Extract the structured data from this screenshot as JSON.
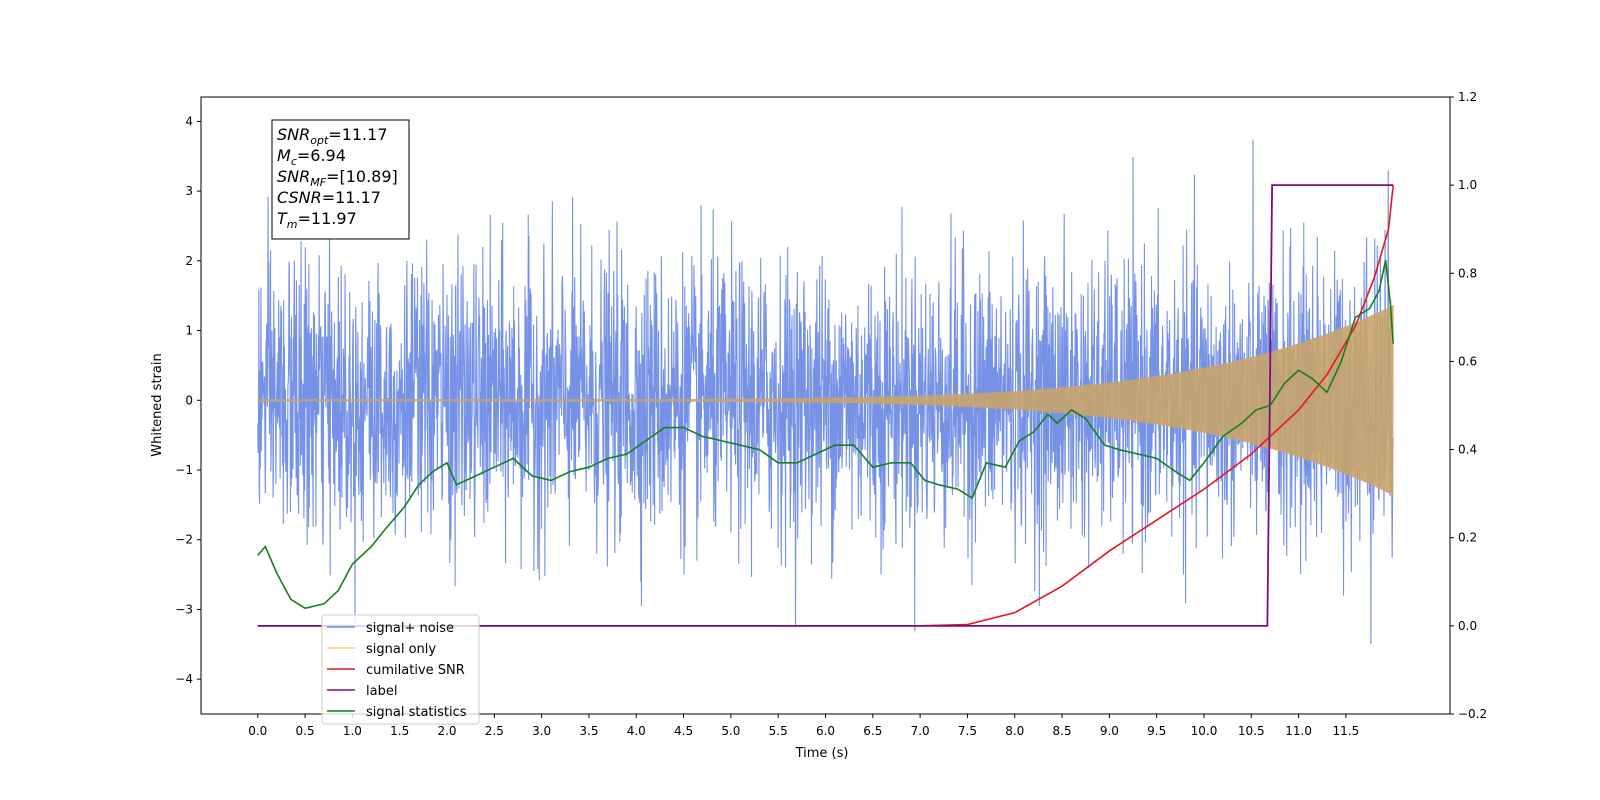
{
  "chart_data": {
    "type": "line",
    "xlabel": "Time (s)",
    "ylabel": "Whitened strain",
    "xlim": [
      -0.6,
      12.6
    ],
    "ylim": [
      -4.5,
      4.35
    ],
    "y2lim": [
      -0.2,
      1.2
    ],
    "x_ticks": [
      0.0,
      0.5,
      1.0,
      1.5,
      2.0,
      2.5,
      3.0,
      3.5,
      4.0,
      4.5,
      5.0,
      5.5,
      6.0,
      6.5,
      7.0,
      7.5,
      8.0,
      8.5,
      9.0,
      9.5,
      10.0,
      10.5,
      11.0,
      11.5
    ],
    "x_tick_labels": [
      "0.0",
      "0.5",
      "1.0",
      "1.5",
      "2.0",
      "2.5",
      "3.0",
      "3.5",
      "4.0",
      "4.5",
      "5.0",
      "5.5",
      "6.0",
      "6.5",
      "7.0",
      "7.5",
      "8.0",
      "8.5",
      "9.0",
      "9.5",
      "10.0",
      "10.5",
      "11.0",
      "11.5"
    ],
    "y_ticks": [
      -4,
      -3,
      -2,
      -1,
      0,
      1,
      2,
      3,
      4
    ],
    "y_tick_labels": [
      "−4",
      "−3",
      "−2",
      "−1",
      "0",
      "1",
      "2",
      "3",
      "4"
    ],
    "y2_ticks": [
      -0.2,
      0.0,
      0.2,
      0.4,
      0.6,
      0.8,
      1.0,
      1.2
    ],
    "y2_tick_labels": [
      "−0.2",
      "0.0",
      "0.2",
      "0.4",
      "0.6",
      "0.8",
      "1.0",
      "1.2"
    ],
    "legend_placement": "lower-left",
    "annotation_box": {
      "lines": [
        {
          "sym": "SNR",
          "sub": "opt",
          "val": "=11.17"
        },
        {
          "sym": "M",
          "sub": "c",
          "val": "=6.94"
        },
        {
          "sym": "SNR",
          "sub": "MF",
          "val": "=[10.89]"
        },
        {
          "sym": "CSNR",
          "sub": "",
          "val": "=11.17"
        },
        {
          "sym": "T",
          "sub": "m",
          "val": "=11.97"
        }
      ]
    },
    "series": [
      {
        "name": "signal+ noise",
        "axis": "left",
        "color": "#6f8ce6",
        "style": "noise",
        "x_range": [
          0.0,
          12.0
        ],
        "y_range": [
          -4.1,
          3.95
        ],
        "typical_band": [
          -1.5,
          1.5
        ]
      },
      {
        "name": "signal only",
        "axis": "left",
        "color": "#f5a623",
        "style": "chirp",
        "x_range": [
          0.0,
          12.0
        ],
        "peak_amplitude": 1.35
      },
      {
        "name": "cumilative SNR",
        "axis": "right",
        "color": "#e31a1c",
        "style": "line",
        "points": [
          [
            0.0,
            0.0
          ],
          [
            7.0,
            0.0
          ],
          [
            7.5,
            0.003
          ],
          [
            8.0,
            0.03
          ],
          [
            8.5,
            0.09
          ],
          [
            9.0,
            0.17
          ],
          [
            9.5,
            0.24
          ],
          [
            10.0,
            0.31
          ],
          [
            10.5,
            0.39
          ],
          [
            11.0,
            0.49
          ],
          [
            11.3,
            0.57
          ],
          [
            11.6,
            0.68
          ],
          [
            11.8,
            0.79
          ],
          [
            11.95,
            0.9
          ],
          [
            12.0,
            1.0
          ]
        ]
      },
      {
        "name": "label",
        "axis": "right",
        "color": "#7b0f7b",
        "style": "line",
        "points": [
          [
            0.0,
            0.0
          ],
          [
            10.67,
            0.0
          ],
          [
            10.72,
            1.0
          ],
          [
            12.0,
            1.0
          ]
        ]
      },
      {
        "name": "signal statistics",
        "axis": "right",
        "color": "#17801c",
        "style": "line",
        "points": [
          [
            0.0,
            0.16
          ],
          [
            0.08,
            0.18
          ],
          [
            0.2,
            0.12
          ],
          [
            0.35,
            0.06
          ],
          [
            0.5,
            0.04
          ],
          [
            0.7,
            0.05
          ],
          [
            0.85,
            0.08
          ],
          [
            1.0,
            0.14
          ],
          [
            1.2,
            0.18
          ],
          [
            1.35,
            0.22
          ],
          [
            1.55,
            0.27
          ],
          [
            1.7,
            0.32
          ],
          [
            1.85,
            0.35
          ],
          [
            2.0,
            0.37
          ],
          [
            2.1,
            0.32
          ],
          [
            2.3,
            0.34
          ],
          [
            2.5,
            0.36
          ],
          [
            2.7,
            0.38
          ],
          [
            2.9,
            0.34
          ],
          [
            3.1,
            0.33
          ],
          [
            3.3,
            0.35
          ],
          [
            3.5,
            0.36
          ],
          [
            3.7,
            0.38
          ],
          [
            3.9,
            0.39
          ],
          [
            4.1,
            0.42
          ],
          [
            4.3,
            0.45
          ],
          [
            4.5,
            0.45
          ],
          [
            4.7,
            0.43
          ],
          [
            4.9,
            0.42
          ],
          [
            5.1,
            0.41
          ],
          [
            5.3,
            0.4
          ],
          [
            5.5,
            0.37
          ],
          [
            5.7,
            0.37
          ],
          [
            5.9,
            0.39
          ],
          [
            6.1,
            0.41
          ],
          [
            6.3,
            0.41
          ],
          [
            6.5,
            0.36
          ],
          [
            6.7,
            0.37
          ],
          [
            6.9,
            0.37
          ],
          [
            7.05,
            0.33
          ],
          [
            7.2,
            0.32
          ],
          [
            7.4,
            0.31
          ],
          [
            7.55,
            0.29
          ],
          [
            7.7,
            0.37
          ],
          [
            7.9,
            0.36
          ],
          [
            8.05,
            0.42
          ],
          [
            8.2,
            0.44
          ],
          [
            8.35,
            0.48
          ],
          [
            8.45,
            0.46
          ],
          [
            8.6,
            0.49
          ],
          [
            8.75,
            0.47
          ],
          [
            8.95,
            0.41
          ],
          [
            9.1,
            0.4
          ],
          [
            9.3,
            0.39
          ],
          [
            9.5,
            0.38
          ],
          [
            9.7,
            0.35
          ],
          [
            9.85,
            0.33
          ],
          [
            10.0,
            0.37
          ],
          [
            10.2,
            0.43
          ],
          [
            10.4,
            0.46
          ],
          [
            10.55,
            0.49
          ],
          [
            10.7,
            0.5
          ],
          [
            10.85,
            0.55
          ],
          [
            11.0,
            0.58
          ],
          [
            11.15,
            0.56
          ],
          [
            11.3,
            0.53
          ],
          [
            11.45,
            0.6
          ],
          [
            11.6,
            0.7
          ],
          [
            11.75,
            0.72
          ],
          [
            11.85,
            0.76
          ],
          [
            11.92,
            0.83
          ],
          [
            11.97,
            0.73
          ],
          [
            12.0,
            0.64
          ]
        ]
      }
    ]
  }
}
